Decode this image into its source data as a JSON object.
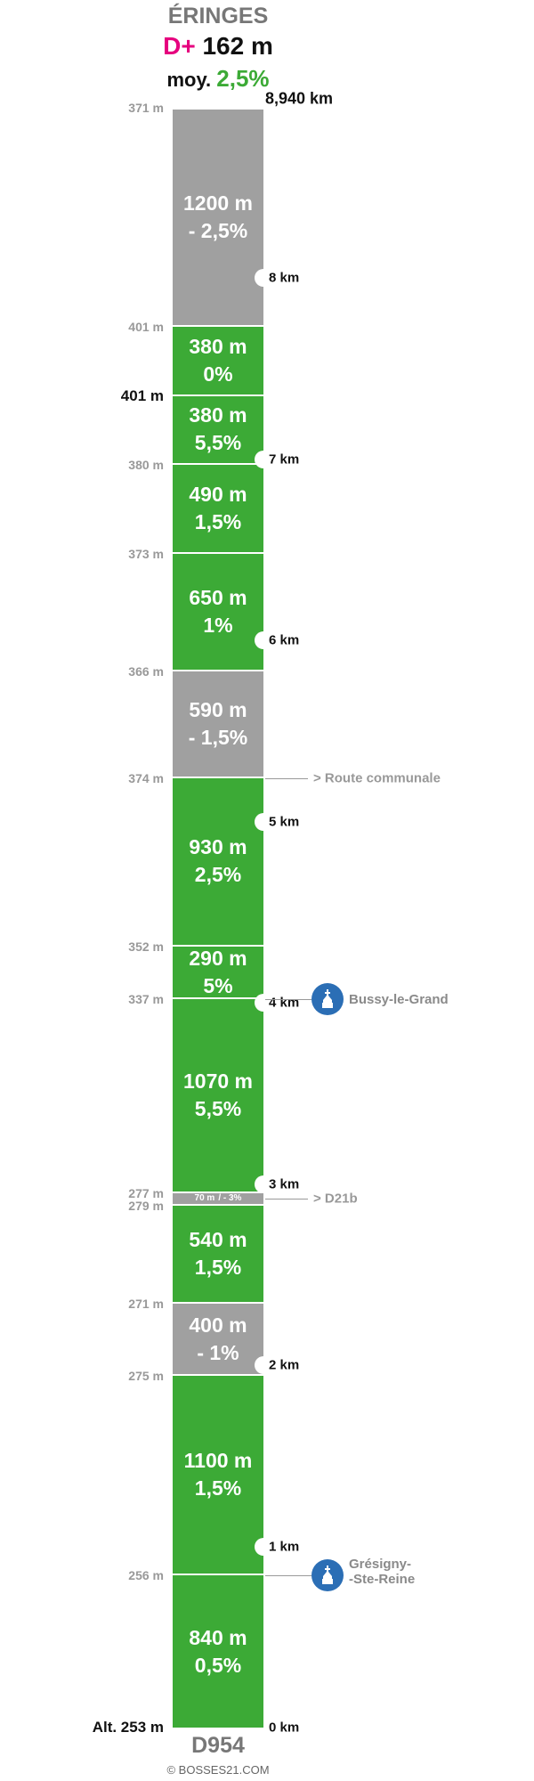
{
  "header": {
    "title": "ÉRINGES",
    "dplus_label": "D+",
    "dplus_value": "162 m",
    "moy_label": "moy.",
    "moy_value": "2,5%"
  },
  "colors": {
    "climb": "#3caa36",
    "descent": "#a0a0a0",
    "accent": "#e6007e",
    "village": "#2b6eb5"
  },
  "total_km": 8.94,
  "distance_top_label": "8,940 km",
  "road_label": "D954",
  "credit": "© BOSSES21.COM",
  "segments": [
    {
      "type": "climb",
      "length_m": 840,
      "length_label": "840 m",
      "grade_label": "0,5%"
    },
    {
      "type": "climb",
      "length_m": 1100,
      "length_label": "1100 m",
      "grade_label": "1,5%"
    },
    {
      "type": "descent",
      "length_m": 400,
      "length_label": "400 m",
      "grade_label": "- 1%"
    },
    {
      "type": "climb",
      "length_m": 540,
      "length_label": "540 m",
      "grade_label": "1,5%"
    },
    {
      "type": "descent",
      "length_m": 70,
      "length_label": "70 m",
      "grade_label": "/ - 3%",
      "small": true
    },
    {
      "type": "climb",
      "length_m": 1070,
      "length_label": "1070 m",
      "grade_label": "5,5%"
    },
    {
      "type": "climb",
      "length_m": 290,
      "length_label": "290 m",
      "grade_label": "5%"
    },
    {
      "type": "climb",
      "length_m": 930,
      "length_label": "930 m",
      "grade_label": "2,5%"
    },
    {
      "type": "descent",
      "length_m": 590,
      "length_label": "590 m",
      "grade_label": "- 1,5%"
    },
    {
      "type": "climb",
      "length_m": 650,
      "length_label": "650 m",
      "grade_label": "1%"
    },
    {
      "type": "climb",
      "length_m": 490,
      "length_label": "490 m",
      "grade_label": "1,5%"
    },
    {
      "type": "climb",
      "length_m": 380,
      "length_label": "380 m",
      "grade_label": "5,5%"
    },
    {
      "type": "climb",
      "length_m": 380,
      "length_label": "380 m",
      "grade_label": "0%"
    },
    {
      "type": "descent",
      "length_m": 1200,
      "length_label": "1200 m",
      "grade_label": "- 2,5%"
    }
  ],
  "altitudes": [
    {
      "label": "Alt. 253 m",
      "at_km": 0,
      "strong": true
    },
    {
      "label": "256 m",
      "at_km": 0.84
    },
    {
      "label": "275 m",
      "at_km": 1.94
    },
    {
      "label": "271 m",
      "at_km": 2.34
    },
    {
      "label": "279 m",
      "at_km": 2.88
    },
    {
      "label": "277 m",
      "at_km": 2.95
    },
    {
      "label": "337 m",
      "at_km": 4.02
    },
    {
      "label": "352 m",
      "at_km": 4.31
    },
    {
      "label": "374 m",
      "at_km": 5.24
    },
    {
      "label": "366 m",
      "at_km": 5.83
    },
    {
      "label": "373 m",
      "at_km": 6.48
    },
    {
      "label": "380 m",
      "at_km": 6.97
    },
    {
      "label": "401 m",
      "at_km": 7.35,
      "strong": true
    },
    {
      "label": "401 m",
      "at_km": 7.73
    },
    {
      "label": "371 m",
      "at_km": 8.94
    }
  ],
  "km_markers": [
    {
      "label": "0 km",
      "km": 0
    },
    {
      "label": "1 km",
      "km": 1
    },
    {
      "label": "2 km",
      "km": 2
    },
    {
      "label": "3 km",
      "km": 3
    },
    {
      "label": "4 km",
      "km": 4
    },
    {
      "label": "5 km",
      "km": 5
    },
    {
      "label": "6 km",
      "km": 6
    },
    {
      "label": "7 km",
      "km": 7
    },
    {
      "label": "8 km",
      "km": 8
    }
  ],
  "road_info": [
    {
      "label": "> D21b",
      "at_km": 2.92
    },
    {
      "label": "> Route communale",
      "at_km": 5.24
    }
  ],
  "villages": [
    {
      "lines": [
        "Grésigny-",
        "-Ste-Reine"
      ],
      "at_km": 0.84
    },
    {
      "lines": [
        "Bussy-le-Grand"
      ],
      "at_km": 4.02
    }
  ]
}
